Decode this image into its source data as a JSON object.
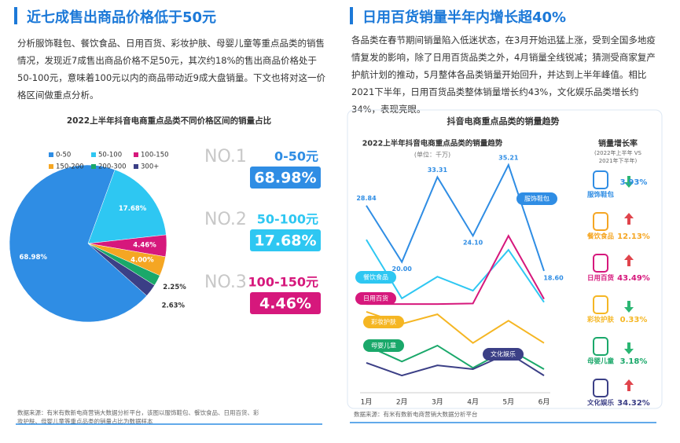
{
  "left": {
    "title": "近七成售出商品价格低于50元",
    "paragraph": "分析服饰鞋包、餐饮食品、日用百货、彩妆护肤、母婴儿童等重点品类的销售情况，发现近7成售出商品价格不足50元，其次约18%的售出商品价格处于50-100元，意味着100元以内的商品带动近9成大盘销量。下文也将对这一价格区间做重点分析。",
    "ranking": [
      {
        "rank": "NO.1",
        "range": "0-50元",
        "share": "68.98%"
      },
      {
        "rank": "NO.2",
        "range": "50-100元",
        "share": "17.68%"
      },
      {
        "rank": "NO.3",
        "range": "100-150元",
        "share": "4.46%"
      }
    ],
    "source": "数据来源：有米有数新电商营销大数据分析平台，该图以服饰鞋包、餐饮食品、日用百货、彩妆护肤、母婴儿童等重点品类的销量占比为数据样本"
  },
  "right": {
    "title": "日用百货销量半年内增长超40%",
    "paragraph": "各品类在春节期间销量陷入低迷状态，在3月开始迅猛上涨，受到全国多地疫情复发的影响，除了日用百货品类之外，4月销量全线锐减；猜测受商家复产护航计划的推动，5月整体各品类销量开始回升，并达到上半年峰值。相比2021下半年，日用百货品类整体销量增长约43%，文化娱乐品类增长约34%，表现亮眼。",
    "panel_title": "抖音电商重点品类的销量趋势",
    "growth": {
      "title": "销量增长率",
      "subtitle": "(2022年上半年 VS 2021年下半年)",
      "rows": [
        {
          "name": "服饰鞋包",
          "trend": "down",
          "value": "3.93%"
        },
        {
          "name": "餐饮食品",
          "trend": "up",
          "value": "12.13%"
        },
        {
          "name": "日用百货",
          "trend": "up",
          "value": "43.49%"
        },
        {
          "name": "彩妆护肤",
          "trend": "down",
          "value": "0.33%"
        },
        {
          "name": "母婴儿童",
          "trend": "down",
          "value": "3.18%"
        },
        {
          "name": "文化娱乐",
          "trend": "up",
          "value": "34.32%"
        }
      ]
    },
    "source": "数据来源：有米有数新电商营销大数据分析平台"
  },
  "chart_data": [
    {
      "type": "pie",
      "title": "2022上半年抖音电商重点品类不同价格区间的销量占比",
      "categories": [
        "0-50",
        "50-100",
        "100-150",
        "150-200",
        "200-300",
        "300+"
      ],
      "values": [
        68.98,
        17.68,
        4.46,
        4.0,
        2.25,
        2.63
      ],
      "value_labels": [
        "68.98%",
        "17.68%",
        "4.46%",
        "4.00%",
        "2.25%",
        "2.63%"
      ],
      "colors": [
        "#2f8de4",
        "#2ec7f2",
        "#d6187c",
        "#f5a623",
        "#1aa86a",
        "#3b3f86"
      ]
    },
    {
      "type": "line",
      "title": "2022上半年抖音电商重点品类的销量趋势",
      "subtitle": "(单位：千万)",
      "categories": [
        "1月",
        "2月",
        "3月",
        "4月",
        "5月",
        "6月"
      ],
      "series": [
        {
          "name": "服饰鞋包",
          "color": "#2f8de4",
          "values": [
            28.84,
            20.0,
            33.31,
            24.1,
            35.21,
            18.6
          ],
          "value_labels": [
            "28.84",
            "20.00",
            "33.31",
            "24.10",
            "35.21",
            "18.60"
          ]
        },
        {
          "name": "餐饮食品",
          "color": "#2ec7f2",
          "values": [
            23.5,
            14.3,
            17.7,
            15.5,
            21.9,
            13.7
          ]
        },
        {
          "name": "日用百货",
          "color": "#d6187c",
          "values": [
            13.4,
            13.4,
            13.4,
            13.5,
            24.1,
            14.2
          ]
        },
        {
          "name": "彩妆护肤",
          "color": "#f5b623",
          "values": [
            12.2,
            10.3,
            11.8,
            7.3,
            10.8,
            7.3
          ]
        },
        {
          "name": "母婴儿童",
          "color": "#1aa86a",
          "values": [
            6.9,
            4.4,
            6.9,
            3.4,
            6.4,
            3.2
          ]
        },
        {
          "name": "文化娱乐",
          "color": "#3b3f86",
          "values": [
            4.2,
            2.2,
            3.8,
            3.2,
            5.7,
            2.2
          ]
        }
      ]
    }
  ]
}
